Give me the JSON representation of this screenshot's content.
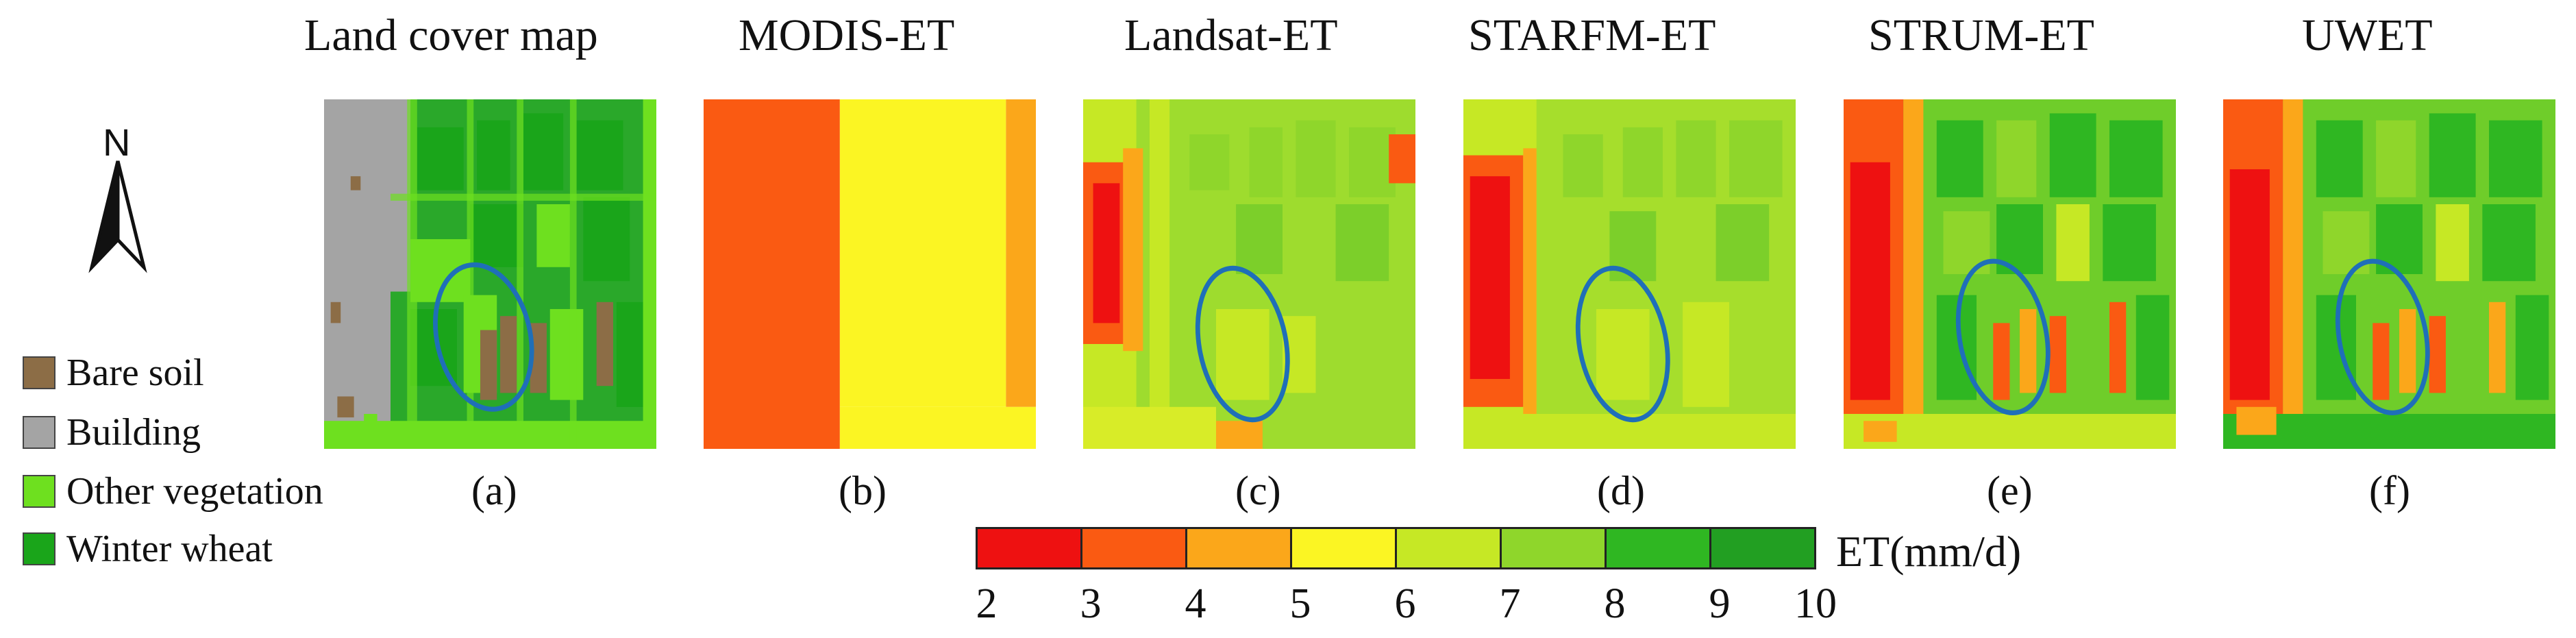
{
  "panels": [
    {
      "id": "a",
      "title": "Land cover map",
      "label": "(a)"
    },
    {
      "id": "b",
      "title": "MODIS-ET",
      "label": "(b)"
    },
    {
      "id": "c",
      "title": "Landsat-ET",
      "label": "(c)"
    },
    {
      "id": "d",
      "title": "STARFM-ET",
      "label": "(d)"
    },
    {
      "id": "e",
      "title": "STRUM-ET",
      "label": "(e)"
    },
    {
      "id": "f",
      "title": "UWET",
      "label": "(f)"
    }
  ],
  "north": "N",
  "legend": [
    {
      "label": "Bare soil",
      "color": "#8c6d46"
    },
    {
      "label": "Building",
      "color": "#a4a4a4"
    },
    {
      "label": "Other vegetation",
      "color": "#6ee01f"
    },
    {
      "label": "Winter wheat",
      "color": "#1aa51a"
    }
  ],
  "colorbar": {
    "unit": "ET(mm/d)",
    "ticks": [
      "2",
      "3",
      "4",
      "5",
      "6",
      "7",
      "8",
      "9",
      "10"
    ],
    "colors": [
      "#ee1111",
      "#fa5a12",
      "#fba71a",
      "#fbf523",
      "#c6e825",
      "#8fd62b",
      "#2fb722",
      "#229f22"
    ]
  },
  "annotation_color": "#1f6fb8"
}
